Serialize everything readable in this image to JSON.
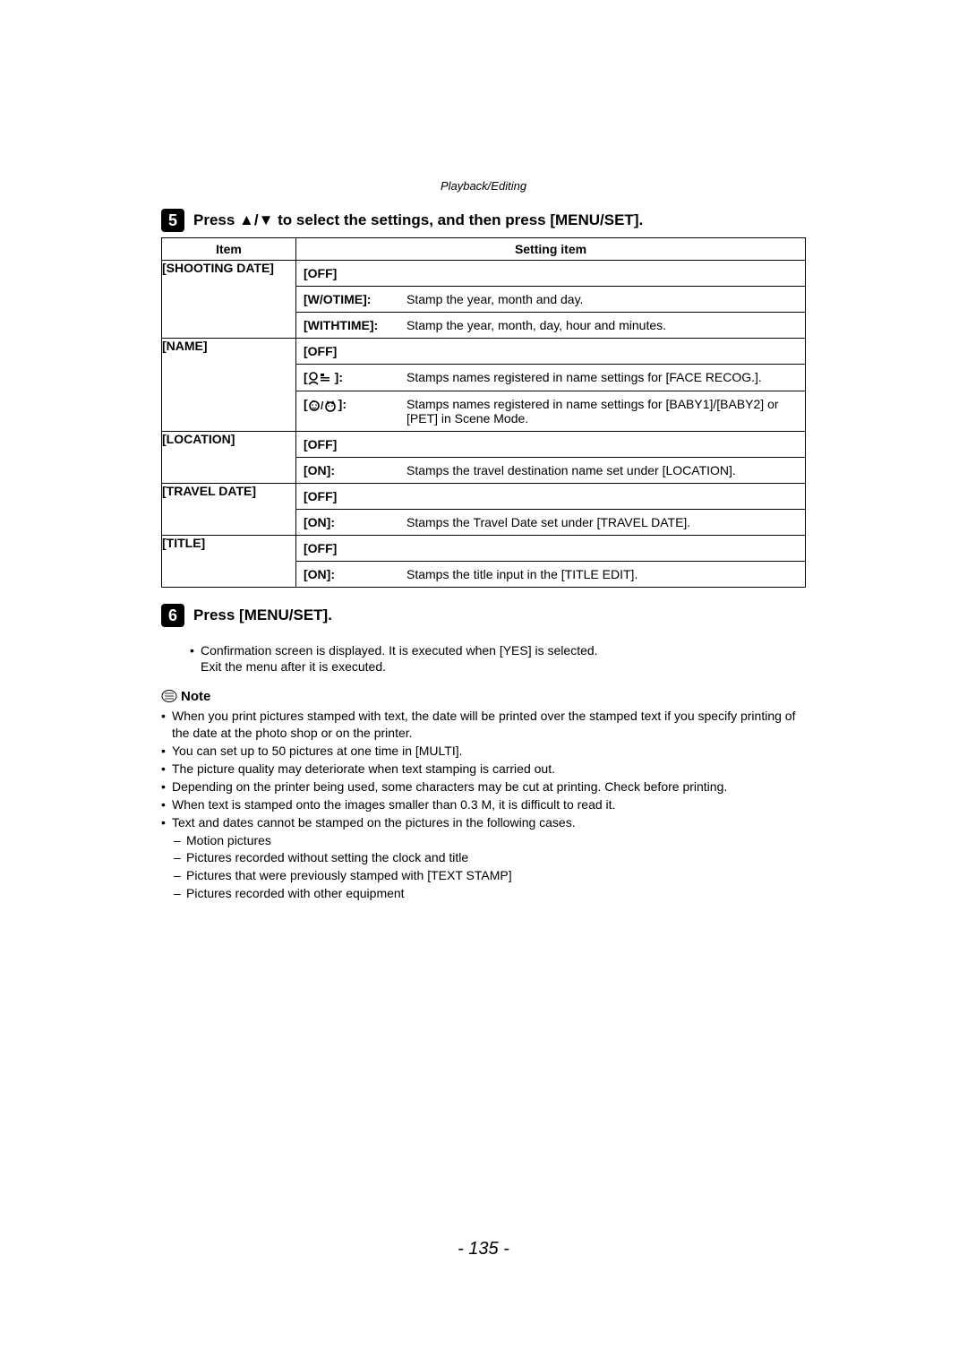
{
  "breadcrumb": "Playback/Editing",
  "step5": {
    "number": "5",
    "text": "Press ▲/▼ to select the settings, and then press [MENU/SET]."
  },
  "table": {
    "head_item": "Item",
    "head_setting": "Setting item",
    "rows": [
      {
        "item": "[SHOOTING DATE]",
        "options": [
          {
            "label": "[OFF]",
            "desc": ""
          },
          {
            "label": "[W/OTIME]:",
            "desc": "Stamp the year, month and day."
          },
          {
            "label": "[WITHTIME]:",
            "desc": "Stamp the year, month, day, hour and minutes."
          }
        ]
      },
      {
        "item": "[NAME]",
        "options": [
          {
            "label": "[OFF]",
            "desc": ""
          },
          {
            "icon": "face",
            "label_suffix": ":",
            "desc": "Stamps names registered in name settings for [FACE RECOG.]."
          },
          {
            "icon": "babypet",
            "label_suffix": ":",
            "desc": "Stamps names registered in name settings for [BABY1]/[BABY2] or [PET] in Scene Mode."
          }
        ]
      },
      {
        "item": "[LOCATION]",
        "options": [
          {
            "label": "[OFF]",
            "desc": ""
          },
          {
            "label": "[ON]:",
            "desc": "Stamps the travel destination name set under [LOCATION]."
          }
        ]
      },
      {
        "item": "[TRAVEL DATE]",
        "options": [
          {
            "label": "[OFF]",
            "desc": ""
          },
          {
            "label": "[ON]:",
            "desc": "Stamps the Travel Date set under [TRAVEL DATE]."
          }
        ]
      },
      {
        "item": "[TITLE]",
        "options": [
          {
            "label": "[OFF]",
            "desc": ""
          },
          {
            "label": "[ON]:",
            "desc": "Stamps the title input in the [TITLE EDIT]."
          }
        ]
      }
    ]
  },
  "step6": {
    "number": "6",
    "text": "Press [MENU/SET].",
    "bullets": [
      "Confirmation screen is displayed. It is executed when [YES] is selected.\nExit the menu after it is executed."
    ]
  },
  "note_label": "Note",
  "notes": [
    "When you print pictures stamped with text, the date will be printed over the stamped text if you specify printing of the date at the photo shop or on the printer.",
    "You can set up to 50 pictures at one time in [MULTI].",
    "The picture quality may deteriorate when text stamping is carried out.",
    "Depending on the printer being used, some characters may be cut at printing. Check before printing.",
    "When text is stamped onto the images smaller than 0.3 M, it is difficult to read it.",
    "Text and dates cannot be stamped on the pictures in the following cases."
  ],
  "sub_notes": [
    "Motion pictures",
    "Pictures recorded without setting the clock and title",
    "Pictures that were previously stamped with [TEXT STAMP]",
    "Pictures recorded with other equipment"
  ],
  "page_number": "- 135 -",
  "colors": {
    "text": "#000000",
    "background": "#ffffff",
    "badge_bg": "#000000",
    "badge_fg": "#ffffff",
    "border": "#000000"
  }
}
